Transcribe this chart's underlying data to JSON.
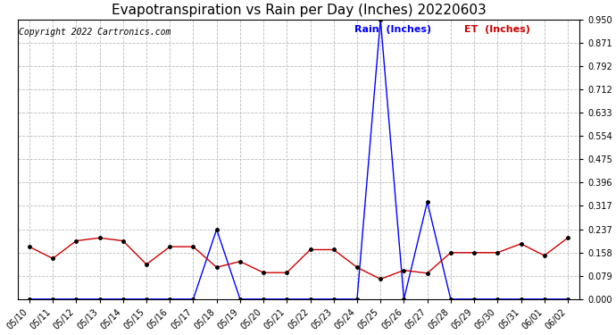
{
  "title": "Evapotranspiration vs Rain per Day (Inches) 20220603",
  "copyright": "Copyright 2022 Cartronics.com",
  "legend_rain": "Rain  (Inches)",
  "legend_et": "ET  (Inches)",
  "dates": [
    "05/10",
    "05/11",
    "05/12",
    "05/13",
    "05/14",
    "05/15",
    "05/16",
    "05/17",
    "05/18",
    "05/19",
    "05/20",
    "05/21",
    "05/22",
    "05/23",
    "05/24",
    "05/25",
    "05/26",
    "05/27",
    "05/28",
    "05/29",
    "05/30",
    "05/31",
    "06/01",
    "06/02"
  ],
  "rain": [
    0.0,
    0.0,
    0.0,
    0.0,
    0.0,
    0.0,
    0.0,
    0.0,
    0.237,
    0.0,
    0.0,
    0.0,
    0.0,
    0.0,
    0.0,
    0.95,
    0.0,
    0.33,
    0.0,
    0.0,
    0.0,
    0.0,
    0.0,
    0.0
  ],
  "et": [
    0.178,
    0.138,
    0.198,
    0.208,
    0.198,
    0.118,
    0.178,
    0.178,
    0.108,
    0.128,
    0.09,
    0.09,
    0.168,
    0.168,
    0.108,
    0.068,
    0.098,
    0.088,
    0.158,
    0.158,
    0.158,
    0.188,
    0.148,
    0.208
  ],
  "rain_color": "#0000ff",
  "et_color": "#cc0000",
  "bg_color": "#ffffff",
  "grid_color": "#bbbbbb",
  "ylim": [
    0.0,
    0.95
  ],
  "yticks": [
    0.0,
    0.079,
    0.158,
    0.237,
    0.317,
    0.396,
    0.475,
    0.554,
    0.633,
    0.712,
    0.792,
    0.871,
    0.95
  ],
  "title_fontsize": 11,
  "copyright_fontsize": 7,
  "legend_fontsize": 8,
  "tick_fontsize": 7
}
